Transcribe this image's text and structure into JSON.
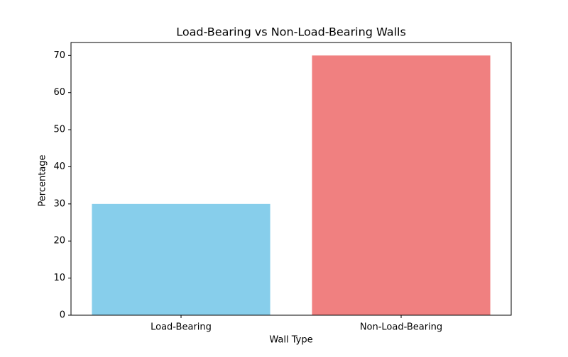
{
  "chart_data": {
    "type": "bar",
    "title": "Load-Bearing vs Non-Load-Bearing Walls",
    "x_label": "Wall Type",
    "y_label": "Percentage",
    "categories": [
      "Load-Bearing",
      "Non-Load-Bearing"
    ],
    "values": [
      30,
      70
    ],
    "colors": [
      "#87ceeb",
      "#f08080"
    ],
    "ylim": [
      0,
      73.5
    ],
    "yticks": [
      0,
      10,
      20,
      30,
      40,
      50,
      60,
      70
    ],
    "grid": false
  }
}
